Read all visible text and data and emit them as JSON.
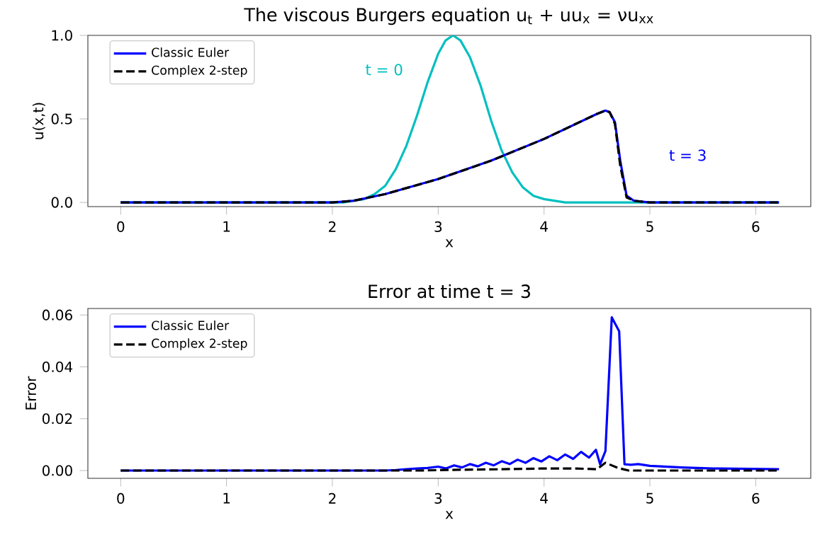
{
  "chart_data": [
    {
      "type": "line",
      "title": "The viscous Burgers equation  u$_{t}$ + uu$_{x}$ = νu$_{xx}$",
      "xlabel": "x",
      "ylabel": "u(x,t)",
      "xlim": [
        -0.31,
        6.52
      ],
      "ylim": [
        -0.025,
        1.0
      ],
      "xticks": [
        0,
        1,
        2,
        3,
        4,
        5,
        6
      ],
      "yticks": [
        {
          "value": 0,
          "label": "0.0"
        },
        {
          "value": 0.5,
          "label": "0.5"
        },
        {
          "value": 1.0,
          "label": "1.0"
        }
      ],
      "legend": "top left",
      "series": [
        {
          "color": "#00bfbf",
          "line_style": "solid",
          "x": [
            0,
            2.1,
            2.3,
            2.4,
            2.5,
            2.6,
            2.7,
            2.8,
            2.9,
            3.0,
            3.07,
            3.14,
            3.21,
            3.3,
            3.4,
            3.5,
            3.6,
            3.7,
            3.8,
            3.9,
            4.0,
            4.2,
            6.22
          ],
          "values": [
            0,
            0,
            0.02,
            0.05,
            0.1,
            0.2,
            0.34,
            0.52,
            0.72,
            0.89,
            0.97,
            1.0,
            0.97,
            0.87,
            0.7,
            0.49,
            0.31,
            0.18,
            0.09,
            0.04,
            0.02,
            0,
            0
          ]
        },
        {
          "name": "Classic Euler",
          "color": "#0000ff",
          "line_style": "solid",
          "x": [
            0,
            2.0,
            2.2,
            2.5,
            3.0,
            3.5,
            4.0,
            4.5,
            4.58,
            4.62,
            4.67,
            4.72,
            4.78,
            4.85,
            5.0,
            6.22
          ],
          "values": [
            0,
            0,
            0.01,
            0.05,
            0.14,
            0.25,
            0.38,
            0.53,
            0.55,
            0.54,
            0.48,
            0.25,
            0.04,
            0.01,
            0,
            0
          ]
        },
        {
          "name": "Complex 2-step",
          "color": "#000000",
          "line_style": "dashed",
          "x": [
            0,
            2.0,
            2.2,
            2.5,
            3.0,
            3.5,
            4.0,
            4.5,
            4.58,
            4.62,
            4.67,
            4.72,
            4.78,
            4.85,
            5.0,
            6.22
          ],
          "values": [
            0,
            0,
            0.01,
            0.05,
            0.14,
            0.25,
            0.38,
            0.53,
            0.55,
            0.54,
            0.47,
            0.22,
            0.03,
            0.01,
            0,
            0
          ]
        }
      ],
      "annotations": [
        "t = 0",
        "t = 3"
      ]
    },
    {
      "type": "line",
      "title": "Error at time t = 3",
      "xlabel": "x",
      "ylabel": "Error",
      "xlim": [
        -0.31,
        6.52
      ],
      "ylim": [
        -0.003,
        0.0625
      ],
      "xticks": [
        0,
        1,
        2,
        3,
        4,
        5,
        6
      ],
      "yticks": [
        {
          "value": 0,
          "label": "0.00"
        },
        {
          "value": 0.02,
          "label": "0.02"
        },
        {
          "value": 0.04,
          "label": "0.04"
        },
        {
          "value": 0.06,
          "label": "0.06"
        }
      ],
      "legend": "top left",
      "series": [
        {
          "name": "Classic Euler",
          "color": "#0000ff",
          "line_style": "solid",
          "x": [
            0,
            2.5,
            2.6,
            2.7,
            2.8,
            2.9,
            3.0,
            3.075,
            3.15,
            3.225,
            3.3,
            3.375,
            3.45,
            3.525,
            3.6,
            3.675,
            3.75,
            3.825,
            3.9,
            3.975,
            4.05,
            4.125,
            4.2,
            4.275,
            4.35,
            4.425,
            4.49,
            4.53,
            4.58,
            4.64,
            4.71,
            4.76,
            4.82,
            4.89,
            5.0,
            5.3,
            5.6,
            6.22
          ],
          "values": [
            0,
            0,
            0.0002,
            0.0005,
            0.0008,
            0.001,
            0.0015,
            0.0008,
            0.002,
            0.0012,
            0.0025,
            0.0016,
            0.003,
            0.002,
            0.0036,
            0.0025,
            0.0042,
            0.003,
            0.0048,
            0.0035,
            0.0055,
            0.004,
            0.0062,
            0.0045,
            0.0072,
            0.005,
            0.008,
            0.0024,
            0.0075,
            0.0591,
            0.0537,
            0.0024,
            0.0022,
            0.0025,
            0.0018,
            0.0012,
            0.0008,
            0.0005
          ]
        },
        {
          "name": "Complex 2-step",
          "color": "#000000",
          "line_style": "dashed",
          "x": [
            0,
            2.8,
            3.2,
            3.6,
            4.0,
            4.3,
            4.5,
            4.58,
            4.7,
            4.8,
            5.0,
            6.22
          ],
          "values": [
            0,
            0,
            0.0003,
            0.0005,
            0.0008,
            0.0008,
            0.0005,
            0.003,
            0.001,
            0,
            0,
            0
          ]
        }
      ]
    }
  ]
}
